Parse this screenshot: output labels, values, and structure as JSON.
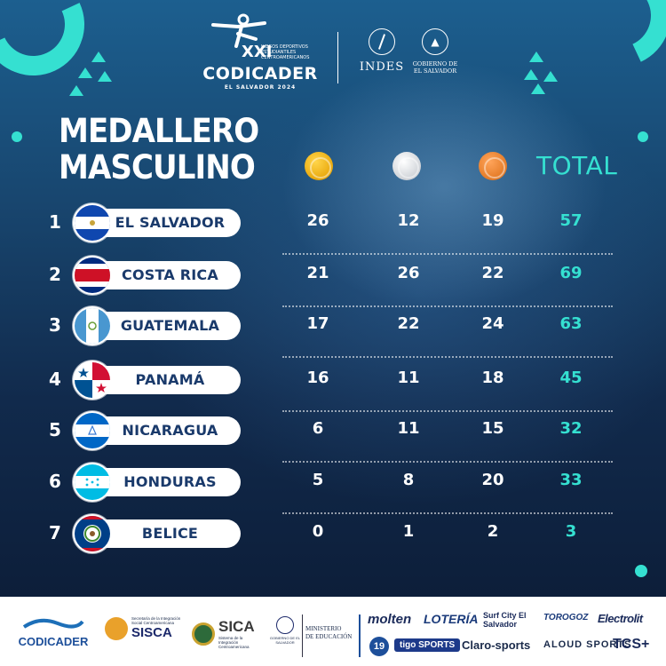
{
  "header": {
    "event_name": "CODICADER",
    "edition": "XXI",
    "event_subtitle_lines": [
      "JUEGOS DEPORTIVOS",
      "ESTUDIANTILES",
      "CENTROAMERICANOS"
    ],
    "event_location": "EL SALVADOR 2024",
    "indes_name": "INDES",
    "gobierno_line1": "GOBIERNO DE",
    "gobierno_line2": "EL SALVADOR"
  },
  "title": {
    "line1": "MEDALLERO",
    "line2": "MASCULINO"
  },
  "columns": {
    "gold": "gold-medal",
    "silver": "silver-medal",
    "bronze": "bronze-medal",
    "total_label": "TOTAL"
  },
  "colors": {
    "accent": "#35e0d1",
    "pill_text": "#1a3a6b",
    "gold": "#f0b41c",
    "silver": "#e8eaec",
    "bronze": "#f08c3a"
  },
  "standings": [
    {
      "rank": "1",
      "country": "EL SALVADOR",
      "gold": "26",
      "silver": "12",
      "bronze": "19",
      "total": "57"
    },
    {
      "rank": "2",
      "country": "COSTA RICA",
      "gold": "21",
      "silver": "26",
      "bronze": "22",
      "total": "69"
    },
    {
      "rank": "3",
      "country": "GUATEMALA",
      "gold": "17",
      "silver": "22",
      "bronze": "24",
      "total": "63"
    },
    {
      "rank": "4",
      "country": "PANAMÁ",
      "gold": "16",
      "silver": "11",
      "bronze": "18",
      "total": "45"
    },
    {
      "rank": "5",
      "country": "NICARAGUA",
      "gold": "6",
      "silver": "11",
      "bronze": "15",
      "total": "32"
    },
    {
      "rank": "6",
      "country": "HONDURAS",
      "gold": "5",
      "silver": "8",
      "bronze": "20",
      "total": "33"
    },
    {
      "rank": "7",
      "country": "BELICE",
      "gold": "0",
      "silver": "1",
      "bronze": "2",
      "total": "3"
    }
  ],
  "footer": {
    "codicader": "CODICADER",
    "sisca": "SISCA",
    "sisca_top": "Secretaría de la Integración Social Centroamericana",
    "sica": "SICA",
    "sica_sub": "Sistema de la Integración Centroamericana",
    "gob_small": "GOBIERNO DE EL SALVADOR",
    "ministerio_line1": "MINISTERIO",
    "ministerio_line2": "DE EDUCACIÓN",
    "sponsors_row1": [
      "molten",
      "LOTERÍA",
      "Surf City El Salvador",
      "TOROGOZ",
      "Electrolit"
    ],
    "sponsors_row2": [
      "19",
      "tigo SPORTS",
      "Claro-sports",
      "ALOUD SPORTS",
      "TCS+"
    ]
  }
}
